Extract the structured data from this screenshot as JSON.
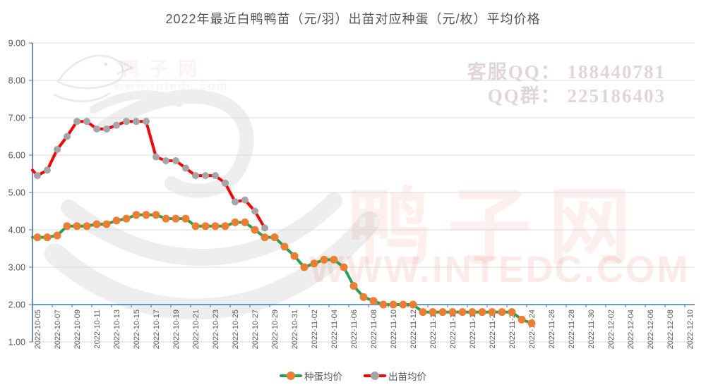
{
  "watermarks": {
    "service_qq": "客服QQ： 188440781",
    "qq_group": "QQ群： 225186403",
    "site_name": "鸭子网",
    "site_url": "WWW.INTEDC.COM",
    "site_url_small": "www.intedc.com",
    "color": "#e4574a"
  },
  "chart_data": {
    "type": "line",
    "title": "2022年最近白鸭鸭苗（元/羽）出苗对应种蛋（元/枚）平均价格",
    "xlabel": "",
    "ylabel": "",
    "ylim": [
      1.0,
      9.0
    ],
    "yticks": [
      "9.00",
      "8.00",
      "7.00",
      "6.00",
      "5.00",
      "4.00",
      "3.00",
      "2.00",
      "1.00"
    ],
    "x_axis_cross_value": 2.0,
    "xtick_every": 2,
    "grid": true,
    "legend_position": "bottom",
    "colors": {
      "axis_line": "#4472C4",
      "gridline": "#D9D9D9",
      "tick_text": "#595959"
    },
    "dates": [
      "2022-10-05",
      "2022-10-06",
      "2022-10-07",
      "2022-10-08",
      "2022-10-09",
      "2022-10-10",
      "2022-10-11",
      "2022-10-12",
      "2022-10-13",
      "2022-10-14",
      "2022-10-15",
      "2022-10-16",
      "2022-10-17",
      "2022-10-18",
      "2022-10-19",
      "2022-10-20",
      "2022-10-21",
      "2022-10-22",
      "2022-10-23",
      "2022-10-24",
      "2022-10-25",
      "2022-10-26",
      "2022-10-27",
      "2022-10-28",
      "2022-10-29",
      "2022-10-30",
      "2022-10-31",
      "2022-11-01",
      "2022-11-02",
      "2022-11-03",
      "2022-11-04",
      "2022-11-05",
      "2022-11-06",
      "2022-11-07",
      "2022-11-08",
      "2022-11-09",
      "2022-11-10",
      "2022-11-11",
      "2022-11-12",
      "2022-11-13",
      "2022-11-14",
      "2022-11-15",
      "2022-11-16",
      "2022-11-17",
      "2022-11-18",
      "2022-11-19",
      "2022-11-20",
      "2022-11-21",
      "2022-11-22",
      "2022-11-23",
      "2022-11-24",
      "2022-11-25",
      "2022-11-26",
      "2022-11-27",
      "2022-11-28",
      "2022-11-29",
      "2022-11-30",
      "2022-12-01",
      "2022-12-02",
      "2022-12-03",
      "2022-12-04",
      "2022-12-05",
      "2022-12-06",
      "2022-12-07",
      "2022-12-08",
      "2022-12-09",
      "2022-12-10"
    ],
    "series": [
      {
        "name": "种蛋均价",
        "line_color": "#23a455",
        "marker_color": "#ED7D31",
        "axis_edge_start": 3.8,
        "values": [
          3.8,
          3.8,
          3.85,
          4.1,
          4.1,
          4.1,
          4.15,
          4.15,
          4.25,
          4.3,
          4.4,
          4.4,
          4.4,
          4.3,
          4.3,
          4.3,
          4.1,
          4.1,
          4.1,
          4.1,
          4.2,
          4.2,
          4.0,
          3.8,
          3.8,
          3.55,
          3.3,
          3.0,
          3.1,
          3.2,
          3.2,
          3.0,
          2.5,
          2.2,
          2.1,
          2.0,
          2.0,
          2.0,
          2.0,
          1.8,
          1.8,
          1.8,
          1.8,
          1.8,
          1.8,
          1.8,
          1.8,
          1.8,
          1.8,
          1.6,
          1.5
        ]
      },
      {
        "name": "出苗均价",
        "line_color": "#fe0000",
        "marker_color": "#A5A5A5",
        "axis_edge_start": 5.6,
        "values": [
          5.45,
          5.6,
          6.15,
          6.5,
          6.9,
          6.9,
          6.7,
          6.7,
          6.8,
          6.9,
          6.9,
          6.9,
          5.95,
          5.85,
          5.85,
          5.65,
          5.45,
          5.45,
          5.45,
          5.25,
          4.75,
          4.8,
          4.5,
          4.05
        ]
      }
    ]
  }
}
